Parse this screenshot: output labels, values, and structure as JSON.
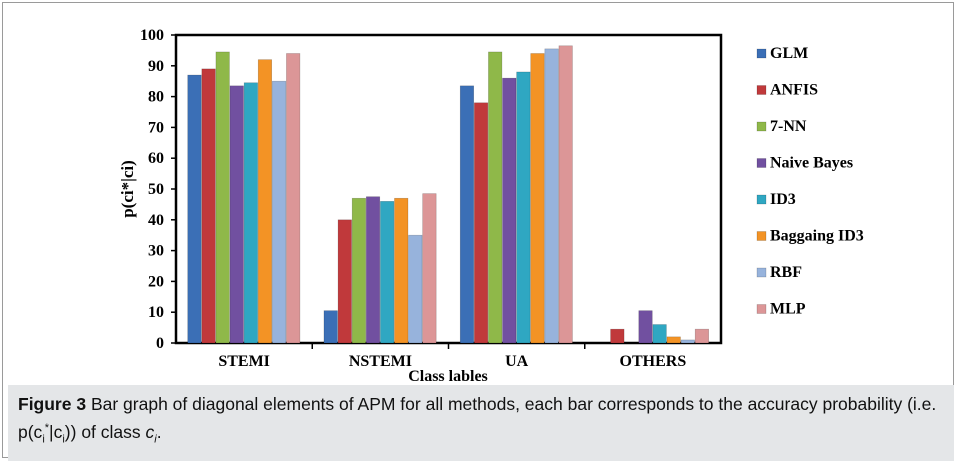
{
  "figure": {
    "caption_label": "Figure 3",
    "caption_text": "Bar graph of diagonal elements of APM for all methods, each bar corresponds to the accuracy probability (i.e. p(c",
    "caption_sub_i": "i",
    "caption_star": "*",
    "caption_mid": "|c",
    "caption_end": ")) of class ",
    "caption_c": "c",
    "caption_final": "."
  },
  "chart_data": {
    "type": "bar",
    "title": "",
    "xlabel": "Class lables",
    "ylabel": "p(ci*|ci)",
    "ylim": [
      0,
      100
    ],
    "yticks": [
      0,
      10,
      20,
      30,
      40,
      50,
      60,
      70,
      80,
      90,
      100
    ],
    "grid": false,
    "legend_position": "right",
    "categories": [
      "STEMI",
      "NSTEMI",
      "UA",
      "OTHERS"
    ],
    "series": [
      {
        "name": "GLM",
        "color": "#3b6fb6",
        "values": [
          87,
          10.5,
          83.5,
          0
        ]
      },
      {
        "name": "ANFIS",
        "color": "#c0393b",
        "values": [
          89,
          40,
          78,
          4.5
        ]
      },
      {
        "name": "7-NN",
        "color": "#8fb849",
        "values": [
          94.5,
          47,
          94.5,
          0
        ]
      },
      {
        "name": "Naive Bayes",
        "color": "#7150a0",
        "values": [
          83.5,
          47.5,
          86,
          10.5
        ]
      },
      {
        "name": "ID3",
        "color": "#2fa7c2",
        "values": [
          84.5,
          46,
          88,
          6
        ]
      },
      {
        "name": "Baggaing ID3",
        "color": "#f39325",
        "values": [
          92,
          47,
          94,
          2
        ]
      },
      {
        "name": "RBF",
        "color": "#97b3dc",
        "values": [
          85,
          35,
          95.5,
          1
        ]
      },
      {
        "name": "MLP",
        "color": "#dc9697",
        "values": [
          94,
          48.5,
          96.5,
          4.5
        ]
      }
    ]
  }
}
